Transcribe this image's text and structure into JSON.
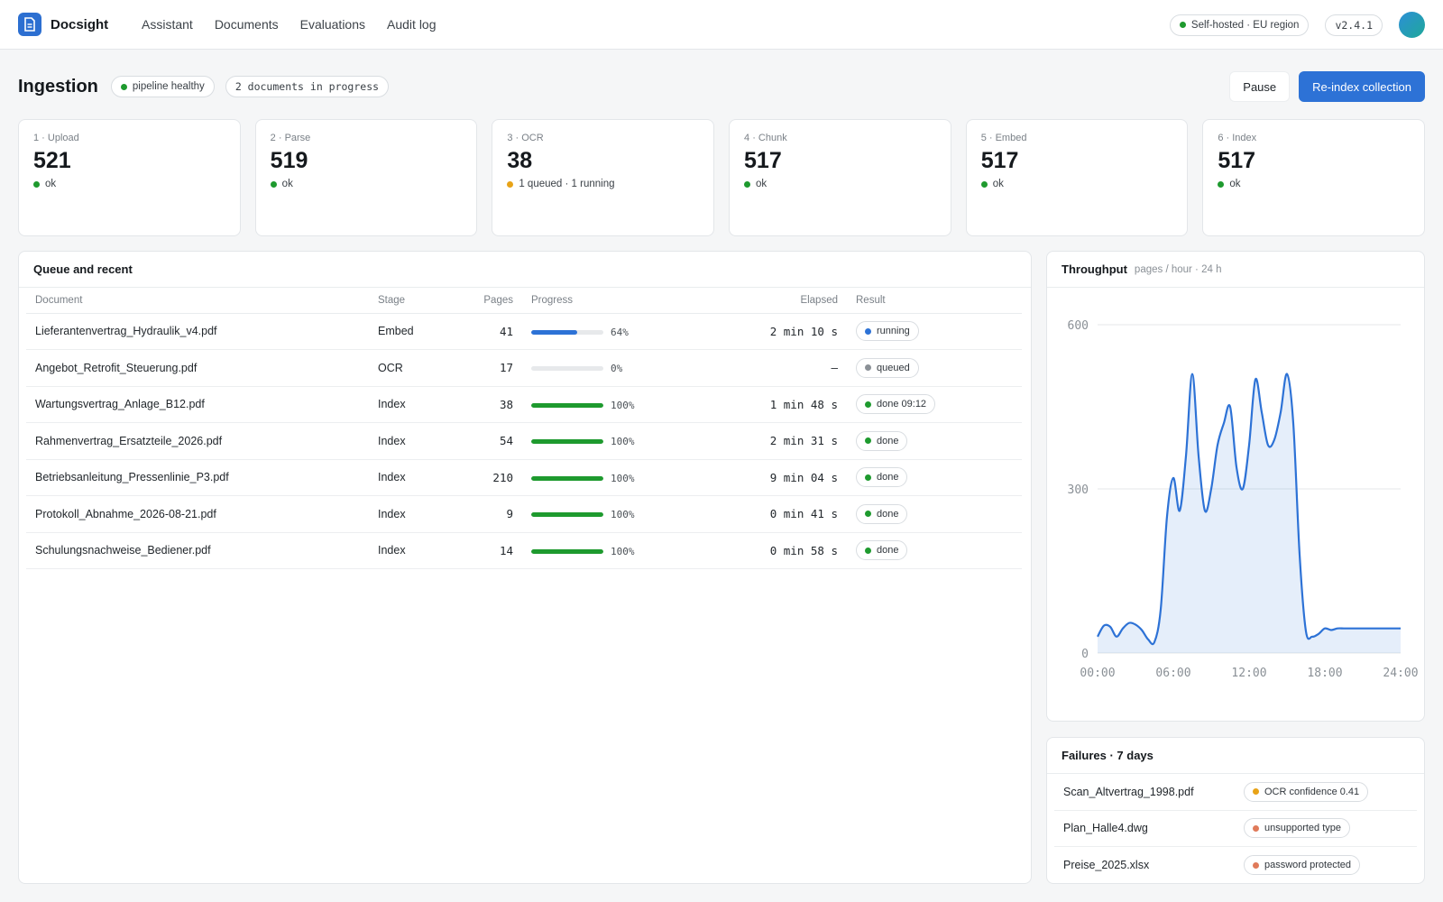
{
  "app": {
    "name": "Docsight",
    "nav": [
      "Assistant",
      "Documents",
      "Evaluations",
      "Audit log"
    ],
    "deployment": "Self-hosted · EU region",
    "version": "v2.4.1",
    "accent": "#2d72d6"
  },
  "page": {
    "title": "Ingestion",
    "health": "pipeline healthy",
    "in_progress": "2 documents in progress",
    "pause_label": "Pause",
    "reindex_label": "Re-index collection"
  },
  "stages": [
    {
      "label": "1 · Upload",
      "value": "521",
      "status": "ok",
      "status_color": "#1e9a2e"
    },
    {
      "label": "2 · Parse",
      "value": "519",
      "status": "ok",
      "status_color": "#1e9a2e"
    },
    {
      "label": "3 · OCR",
      "value": "38",
      "status": "1 queued · 1 running",
      "status_color": "#e8a317"
    },
    {
      "label": "4 · Chunk",
      "value": "517",
      "status": "ok",
      "status_color": "#1e9a2e"
    },
    {
      "label": "5 · Embed",
      "value": "517",
      "status": "ok",
      "status_color": "#1e9a2e"
    },
    {
      "label": "6 · Index",
      "value": "517",
      "status": "ok",
      "status_color": "#1e9a2e"
    }
  ],
  "queue": {
    "title": "Queue and recent",
    "columns": [
      "Document",
      "Stage",
      "Pages",
      "Progress",
      "Elapsed",
      "Result"
    ],
    "rows": [
      {
        "document": "Lieferantenvertrag_Hydraulik_v4.pdf",
        "stage": "Embed",
        "pages": "41",
        "progress": 0.64,
        "progress_text": "64%",
        "elapsed": "2 min 10 s",
        "result": "running",
        "result_color": "#2d72d6",
        "bar_color": "#2d72d6"
      },
      {
        "document": "Angebot_Retrofit_Steuerung.pdf",
        "stage": "OCR",
        "pages": "17",
        "progress": 0,
        "progress_text": "0%",
        "elapsed": "—",
        "result": "queued",
        "result_color": "#8a9096",
        "bar_color": "#1e9a2e"
      },
      {
        "document": "Wartungsvertrag_Anlage_B12.pdf",
        "stage": "Index",
        "pages": "38",
        "progress": 1,
        "progress_text": "100%",
        "elapsed": "1 min 48 s",
        "result": "done 09:12",
        "result_color": "#1e9a2e",
        "bar_color": "#1e9a2e"
      },
      {
        "document": "Rahmenvertrag_Ersatzteile_2026.pdf",
        "stage": "Index",
        "pages": "54",
        "progress": 1,
        "progress_text": "100%",
        "elapsed": "2 min 31 s",
        "result": "done",
        "result_color": "#1e9a2e",
        "bar_color": "#1e9a2e"
      },
      {
        "document": "Betriebsanleitung_Pressenlinie_P3.pdf",
        "stage": "Index",
        "pages": "210",
        "progress": 1,
        "progress_text": "100%",
        "elapsed": "9 min 04 s",
        "result": "done",
        "result_color": "#1e9a2e",
        "bar_color": "#1e9a2e"
      },
      {
        "document": "Protokoll_Abnahme_2026-08-21.pdf",
        "stage": "Index",
        "pages": "9",
        "progress": 1,
        "progress_text": "100%",
        "elapsed": "0 min 41 s",
        "result": "done",
        "result_color": "#1e9a2e",
        "bar_color": "#1e9a2e"
      },
      {
        "document": "Schulungsnachweise_Bediener.pdf",
        "stage": "Index",
        "pages": "14",
        "progress": 1,
        "progress_text": "100%",
        "elapsed": "0 min 58 s",
        "result": "done",
        "result_color": "#1e9a2e",
        "bar_color": "#1e9a2e"
      }
    ]
  },
  "throughput": {
    "title": "Throughput",
    "subtitle": "pages / hour · 24 h"
  },
  "chart_data": {
    "type": "area",
    "title": "Throughput",
    "subtitle": "pages / hour · 24 h",
    "x_ticks": [
      "00:00",
      "06:00",
      "12:00",
      "18:00",
      "24:00"
    ],
    "y_ticks": [
      "0",
      "300",
      "600"
    ],
    "ylim": [
      0,
      600
    ],
    "xlim": [
      0,
      24
    ],
    "grid": true,
    "color": "#2d72d6",
    "x": [
      0,
      0.5,
      1,
      1.5,
      2,
      2.5,
      3,
      3.5,
      4,
      4.5,
      5,
      5.5,
      6,
      6.5,
      7,
      7.5,
      8,
      8.5,
      9,
      9.5,
      10,
      10.5,
      11,
      11.5,
      12,
      12.5,
      13,
      13.5,
      14,
      14.5,
      15,
      15.5,
      16,
      16.5,
      17,
      17.5,
      18,
      18.5,
      19,
      19.5,
      20,
      20.5,
      21,
      21.5,
      22,
      22.5,
      23,
      23.5,
      24
    ],
    "y": [
      30,
      50,
      48,
      30,
      45,
      55,
      52,
      42,
      25,
      20,
      80,
      250,
      320,
      260,
      360,
      510,
      360,
      260,
      300,
      380,
      420,
      450,
      340,
      300,
      380,
      500,
      440,
      380,
      390,
      440,
      510,
      420,
      180,
      40,
      30,
      35,
      45,
      42,
      45,
      45,
      45,
      45,
      45,
      45,
      45,
      45,
      45,
      45,
      45
    ]
  },
  "failures": {
    "title": "Failures · 7 days",
    "rows": [
      {
        "name": "Scan_Altvertrag_1998.pdf",
        "reason": "OCR confidence 0.41",
        "color": "#e8a317"
      },
      {
        "name": "Plan_Halle4.dwg",
        "reason": "unsupported type",
        "color": "#e07a5a"
      },
      {
        "name": "Preise_2025.xlsx",
        "reason": "password protected",
        "color": "#e07a5a"
      }
    ]
  },
  "icons": {
    "brand": "document-icon",
    "status": "dot-icon"
  }
}
